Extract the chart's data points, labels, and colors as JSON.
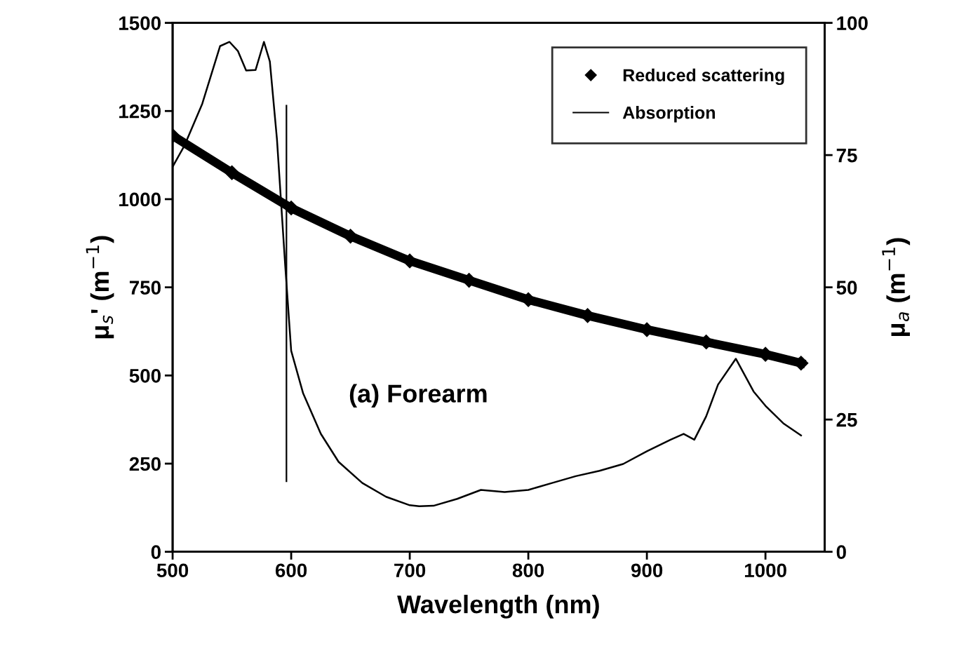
{
  "chart_data": {
    "type": "line",
    "xlabel": "Wavelength (nm)",
    "ylabel": "μ$_{s}$' (m$^{−1}$)",
    "y2label": "μ$_{a}$ (m$^{−1}$)",
    "xlim": [
      500,
      1050
    ],
    "xticks": [
      500,
      600,
      700,
      800,
      900,
      1000
    ],
    "ylim": [
      0,
      1500
    ],
    "yticks": [
      0,
      250,
      500,
      750,
      1000,
      1250,
      1500
    ],
    "y2lim": [
      0,
      100
    ],
    "y2ticks": [
      0,
      25,
      50,
      75,
      100
    ],
    "legend": "top right",
    "grid": false,
    "annotations": [
      "(a) Forearm"
    ],
    "series": [
      {
        "name": "Reduced scattering",
        "color": "#000000",
        "marker": "diamond",
        "x": [
          500,
          550,
          600,
          650,
          700,
          750,
          800,
          850,
          900,
          950,
          1000,
          1030
        ],
        "values": [
          1180,
          1075,
          975,
          895,
          825,
          770,
          715,
          670,
          630,
          595,
          560,
          535
        ]
      },
      {
        "name": "Absorption",
        "color": "#000000",
        "marker": "none",
        "axis": "y2",
        "x": [
          500,
          510,
          525,
          540,
          548,
          555,
          562,
          570,
          577,
          582,
          588,
          595,
          600,
          610,
          625,
          640,
          660,
          680,
          700,
          708,
          720,
          740,
          760,
          780,
          800,
          820,
          840,
          860,
          880,
          900,
          920,
          931,
          940,
          950,
          960,
          975,
          990,
          1000,
          1015,
          1030
        ],
        "values": [
          72.8,
          76.8,
          84.7,
          95.6,
          96.4,
          94.7,
          91,
          91.1,
          96.4,
          92.7,
          78,
          54,
          38,
          30,
          22.3,
          17,
          13,
          10.4,
          8.8,
          8.6,
          8.7,
          10,
          11.7,
          11.3,
          11.7,
          13,
          14.3,
          15.3,
          16.6,
          19,
          21.2,
          22.3,
          21.2,
          25.6,
          31.6,
          36.5,
          30.3,
          27.6,
          24.3,
          22
        ]
      },
      {
        "color": "#000000",
        "marker": "none",
        "x": [
          596,
          596
        ],
        "values": [
          1265,
          200
        ]
      }
    ]
  }
}
